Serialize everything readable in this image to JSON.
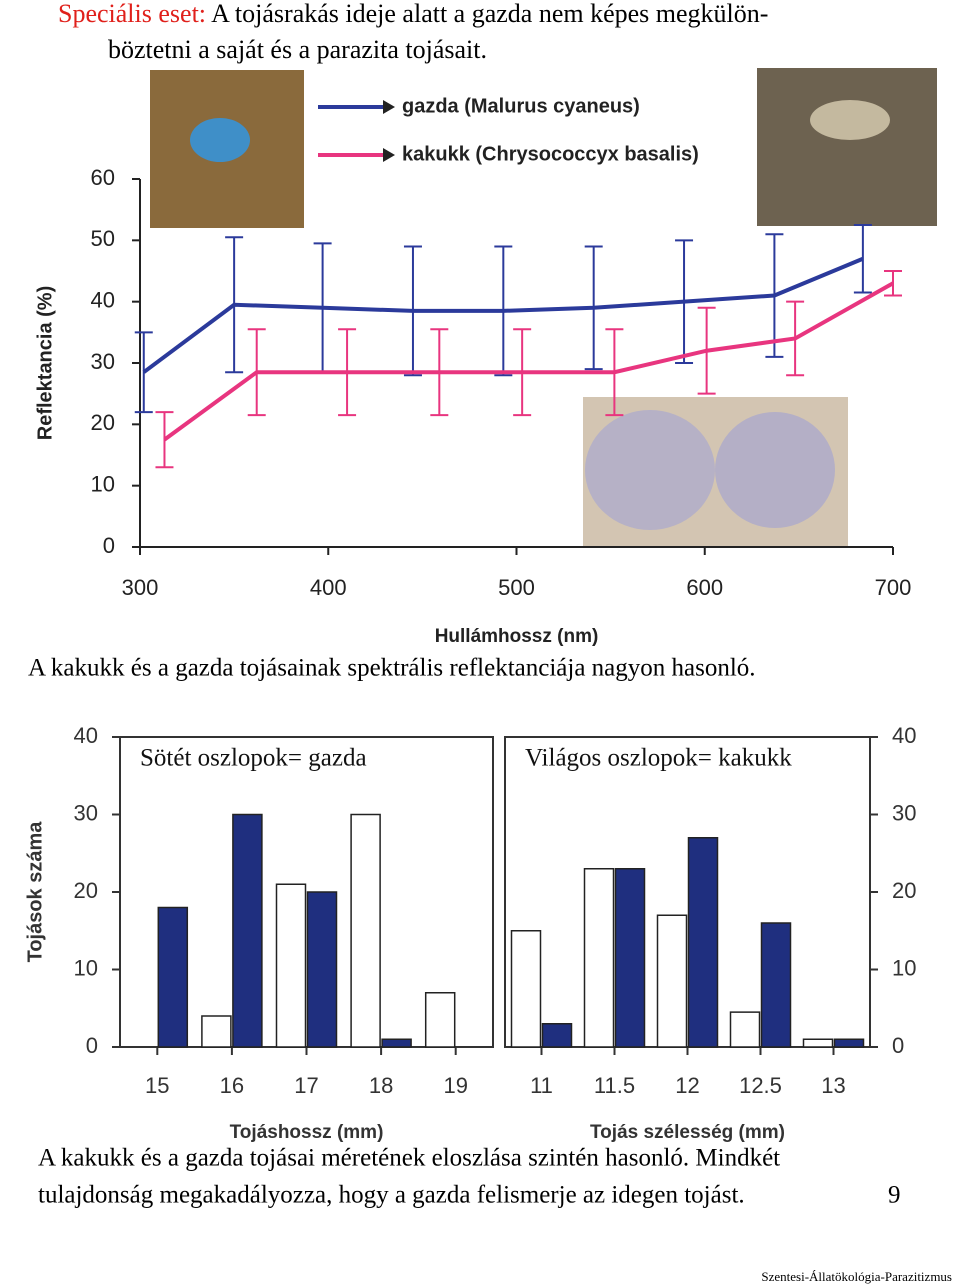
{
  "header": {
    "label": "Speciális eset:",
    "lines": [
      "A tojásrakás ideje alatt a gazda nem képes megkülön-",
      "böztetni a saját és a parazita tojásait."
    ]
  },
  "chart_data": [
    {
      "type": "line",
      "xlabel": "Hullámhossz (nm)",
      "ylabel": "Reflektancia (%)",
      "xlim": [
        300,
        700
      ],
      "ylim": [
        0,
        60
      ],
      "xticks": [
        300,
        400,
        500,
        600,
        700
      ],
      "yticks": [
        0,
        10,
        20,
        30,
        40,
        50,
        60
      ],
      "series": [
        {
          "name": "gazda (Malurus cyaneus)",
          "color": "#2b3a9b",
          "x": [
            302,
            350,
            397,
            445,
            493,
            541,
            589,
            637,
            684
          ],
          "values": [
            28.5,
            39.5,
            39,
            38.5,
            38.5,
            39,
            40,
            41,
            47
          ],
          "errors": [
            6.5,
            11,
            10.5,
            10.5,
            10.5,
            10,
            10,
            10,
            5.5
          ]
        },
        {
          "name": "kakukk (Chrysococcyx basalis)",
          "color": "#e8357f",
          "x": [
            313,
            362,
            410,
            459,
            503,
            552,
            601,
            648,
            700
          ],
          "values": [
            17.5,
            28.5,
            28.5,
            28.5,
            28.5,
            28.5,
            32,
            34,
            43
          ],
          "errors": [
            4.5,
            7,
            7,
            7,
            7,
            7,
            7,
            6,
            2
          ]
        }
      ]
    },
    {
      "type": "bar",
      "annotation": "Sötét oszlopok= gazda",
      "xlabel": "Tojáshossz (mm)",
      "ylabel": "Tojások száma",
      "y_axis_side": "left",
      "categories": [
        "15",
        "16",
        "17",
        "18",
        "19"
      ],
      "ylim": [
        0,
        40
      ],
      "yticks": [
        0,
        10,
        20,
        30,
        40
      ],
      "series": [
        {
          "color": "#ffffff",
          "values": [
            0,
            4,
            21,
            30,
            7
          ]
        },
        {
          "color": "#1f2f7f",
          "values": [
            18,
            30,
            20,
            1,
            0
          ]
        }
      ]
    },
    {
      "type": "bar",
      "annotation": "Világos oszlopok= kakukk",
      "xlabel": "Tojás szélesség (mm)",
      "y_axis_side": "right",
      "categories": [
        "11",
        "11.5",
        "12",
        "12.5",
        "13"
      ],
      "ylim": [
        0,
        40
      ],
      "yticks": [
        0,
        10,
        20,
        30,
        40
      ],
      "series": [
        {
          "color": "#ffffff",
          "values": [
            15,
            23,
            17,
            4.5,
            1
          ]
        },
        {
          "color": "#1f2f7f",
          "values": [
            3,
            23,
            27,
            16,
            1
          ]
        }
      ]
    }
  ],
  "captions": [
    "A kakukk és a gazda tojásainak spektrális reflektanciája nagyon hasonló.",
    "A kakukk és a gazda tojásai méretének eloszlása szintén hasonló. Mindkét",
    "tulajdonság megakadályozza, hogy a gazda felismerje az idegen tojást."
  ],
  "page_number": "9",
  "footer": "Szentesi-Állatökológia-Parazitizmus"
}
